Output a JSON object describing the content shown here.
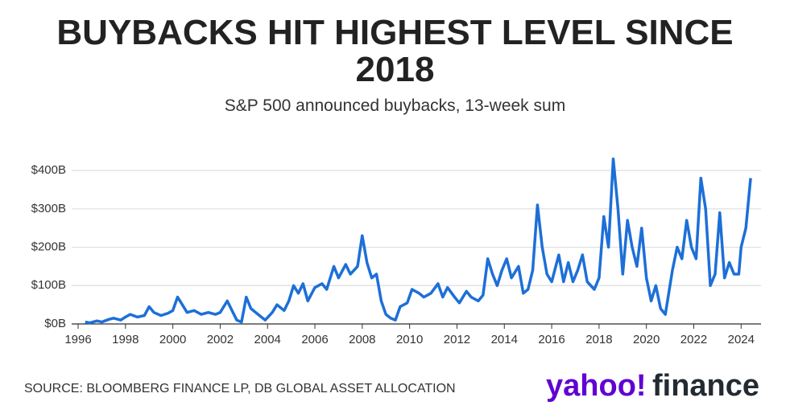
{
  "chart_data": {
    "type": "line",
    "title": "BUYBACKS HIT HIGHEST LEVEL SINCE 2018",
    "subtitle": "S&P 500 announced buybacks, 13-week sum",
    "source": "SOURCE: BLOOMBERG FINANCE LP, DB GLOBAL ASSET ALLOCATION",
    "brand": [
      "yahoo!",
      "finance"
    ],
    "x": [
      1996.3,
      1996.5,
      1996.8,
      1997.0,
      1997.3,
      1997.5,
      1997.8,
      1998.0,
      1998.2,
      1998.5,
      1998.8,
      1999.0,
      1999.2,
      1999.5,
      1999.8,
      2000.0,
      2000.2,
      2000.4,
      2000.6,
      2000.9,
      2001.2,
      2001.5,
      2001.8,
      2002.0,
      2002.3,
      2002.5,
      2002.7,
      2002.9,
      2003.1,
      2003.3,
      2003.6,
      2003.9,
      2004.2,
      2004.4,
      2004.7,
      2004.9,
      2005.1,
      2005.3,
      2005.5,
      2005.7,
      2006.0,
      2006.3,
      2006.5,
      2006.8,
      2007.0,
      2007.3,
      2007.5,
      2007.8,
      2008.0,
      2008.2,
      2008.4,
      2008.6,
      2008.8,
      2009.0,
      2009.2,
      2009.4,
      2009.6,
      2009.9,
      2010.1,
      2010.4,
      2010.6,
      2010.9,
      2011.2,
      2011.4,
      2011.6,
      2011.9,
      2012.1,
      2012.4,
      2012.6,
      2012.9,
      2013.1,
      2013.3,
      2013.5,
      2013.7,
      2013.9,
      2014.1,
      2014.3,
      2014.6,
      2014.8,
      2015.0,
      2015.2,
      2015.4,
      2015.6,
      2015.8,
      2016.0,
      2016.3,
      2016.5,
      2016.7,
      2016.9,
      2017.1,
      2017.3,
      2017.5,
      2017.8,
      2018.0,
      2018.2,
      2018.4,
      2018.6,
      2018.8,
      2019.0,
      2019.2,
      2019.4,
      2019.6,
      2019.8,
      2020.0,
      2020.2,
      2020.4,
      2020.6,
      2020.8,
      2021.1,
      2021.3,
      2021.5,
      2021.7,
      2021.9,
      2022.1,
      2022.3,
      2022.5,
      2022.7,
      2022.9,
      2023.1,
      2023.3,
      2023.5,
      2023.7,
      2023.9,
      2024.0,
      2024.2,
      2024.4
    ],
    "series": [
      {
        "name": "S&P 500 announced buybacks",
        "color": "#1d6fd8",
        "values": [
          5,
          3,
          8,
          5,
          12,
          15,
          10,
          18,
          25,
          18,
          22,
          45,
          30,
          22,
          28,
          35,
          70,
          50,
          30,
          35,
          25,
          30,
          25,
          30,
          60,
          35,
          10,
          5,
          70,
          40,
          25,
          10,
          30,
          50,
          35,
          60,
          100,
          80,
          105,
          60,
          95,
          105,
          90,
          150,
          120,
          155,
          130,
          150,
          230,
          160,
          120,
          130,
          60,
          25,
          15,
          10,
          45,
          55,
          90,
          80,
          70,
          80,
          105,
          70,
          95,
          70,
          55,
          85,
          70,
          60,
          75,
          170,
          130,
          100,
          140,
          170,
          120,
          150,
          80,
          90,
          140,
          310,
          200,
          130,
          110,
          180,
          110,
          160,
          110,
          140,
          180,
          110,
          90,
          120,
          280,
          200,
          430,
          300,
          130,
          270,
          200,
          150,
          250,
          120,
          60,
          100,
          40,
          25,
          140,
          200,
          170,
          270,
          200,
          170,
          380,
          300,
          100,
          130,
          290,
          120,
          160,
          130,
          130,
          200,
          250,
          380
        ]
      }
    ],
    "xlim": [
      1996,
      2024.5
    ],
    "xticks": [
      1996,
      1998,
      2000,
      2002,
      2004,
      2006,
      2008,
      2010,
      2012,
      2014,
      2016,
      2018,
      2020,
      2022,
      2024
    ],
    "ylim": [
      0,
      440
    ],
    "yticks": [
      {
        "value": 0,
        "label": "$0B"
      },
      {
        "value": 100,
        "label": "$100B"
      },
      {
        "value": 200,
        "label": "$200B"
      },
      {
        "value": 300,
        "label": "$300B"
      },
      {
        "value": 400,
        "label": "$400B"
      }
    ],
    "grid": true
  }
}
